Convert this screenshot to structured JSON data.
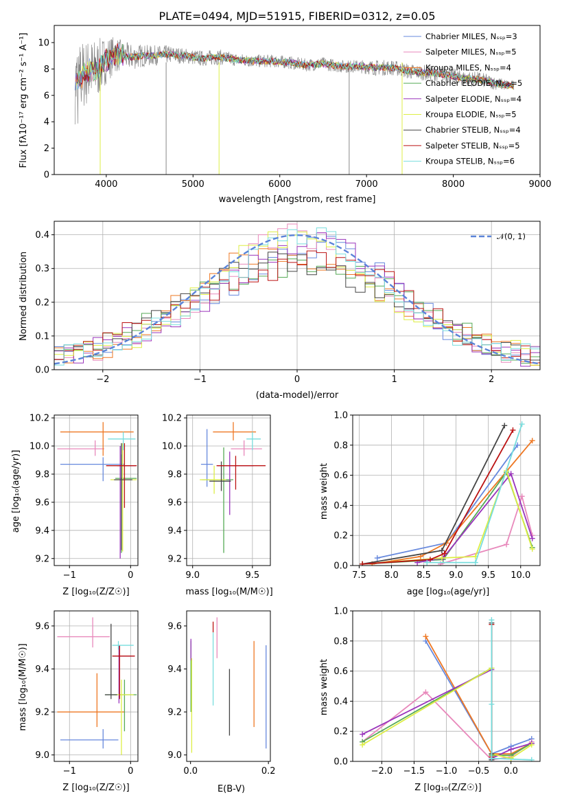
{
  "figure": {
    "colors": [
      "#6688dd",
      "#e888bb",
      "#ee7722",
      "#55aa55",
      "#9933bb",
      "#ddee44",
      "#444444",
      "#bb1111",
      "#77dddd"
    ]
  },
  "chart_data": [
    {
      "id": "spectrum",
      "type": "line",
      "title": "PLATE=0494, MJD=51915, FIBERID=0312, z=0.05",
      "xlabel": "wavelength [Angstrom, rest frame]",
      "ylabel": "Flux [fλ10⁻¹⁷ erg cm⁻² s⁻¹ A⁻¹]",
      "xlim": [
        3400,
        9000
      ],
      "ylim": [
        0,
        11.3
      ],
      "xticks": [
        4000,
        5000,
        6000,
        7000,
        8000,
        9000
      ],
      "yticks": [
        0,
        2,
        4,
        6,
        8,
        10
      ],
      "legend": "top-right",
      "observed_envelope": {
        "x": [
          3640,
          3700,
          3800,
          3900,
          4000,
          4100,
          4200,
          4300,
          4400,
          4500,
          4700,
          4900,
          5100,
          5300,
          5500,
          5700,
          5900,
          6100,
          6300,
          6500,
          6700,
          6900,
          7100,
          7300,
          7500,
          7700,
          7900,
          8100,
          8300,
          8500,
          8700
        ],
        "mid": [
          6.8,
          7.4,
          7.8,
          8.0,
          8.7,
          9.1,
          9.0,
          8.9,
          9.0,
          9.0,
          9.1,
          9.0,
          8.8,
          8.9,
          8.7,
          8.6,
          8.6,
          8.5,
          8.3,
          8.4,
          8.2,
          8.2,
          8.1,
          8.1,
          7.8,
          7.7,
          7.6,
          7.3,
          7.2,
          6.9,
          6.7
        ],
        "noise": [
          3.0,
          2.8,
          2.5,
          2.3,
          1.8,
          1.4,
          1.1,
          1.0,
          0.9,
          0.8,
          0.7,
          0.6,
          0.6,
          0.6,
          0.5,
          0.5,
          0.5,
          0.5,
          0.5,
          0.5,
          0.5,
          0.5,
          0.6,
          0.6,
          0.6,
          0.6,
          0.6,
          0.6,
          0.6,
          0.5,
          0.4
        ]
      },
      "series": [
        {
          "name": "Chabrier MILES, N$_{SSP}$=3"
        },
        {
          "name": "Salpeter MILES, N$_{SSP}$=5"
        },
        {
          "name": "Kroupa MILES, N$_{SSP}$=4"
        },
        {
          "name": "Chabrier ELODIE, N$_{SSP}$=5"
        },
        {
          "name": "Salpeter ELODIE, N$_{SSP}$=4"
        },
        {
          "name": "Kroupa ELODIE, N$_{SSP}$=5"
        },
        {
          "name": "Chabrier STELIB, N$_{SSP}$=4"
        },
        {
          "name": "Salpeter STELIB, N$_{SSP}$=5"
        },
        {
          "name": "Kroupa STELIB, N$_{SSP}$=6"
        }
      ]
    },
    {
      "id": "residuals",
      "type": "histogram",
      "xlabel": "(data-model)/error",
      "ylabel": "Normed distribution",
      "xlim": [
        -2.5,
        2.5
      ],
      "ylim": [
        0,
        0.44
      ],
      "xticks": [
        -2,
        -1,
        0,
        1,
        2
      ],
      "yticks": [
        0.0,
        0.1,
        0.2,
        0.3,
        0.4
      ],
      "grid": true,
      "legend": "top-right",
      "reference_curve": {
        "name": "$\\mathcal{N}(0,1)$",
        "mean": 0,
        "sigma": 1
      },
      "bin_width": 0.1
    },
    {
      "id": "age_vs_Z",
      "type": "errorbar",
      "xlabel": "Z [log$_{10}$(Z/Z$_\\odot$)]",
      "ylabel": "age  [log$_{10}$(age/yr)]",
      "xlim": [
        -1.25,
        0.12
      ],
      "ylim": [
        9.15,
        10.22
      ],
      "xticks": [
        -1,
        0
      ],
      "yticks": [
        9.2,
        9.4,
        9.6,
        9.8,
        10.0,
        10.2
      ],
      "grid": true,
      "points": [
        {
          "x": -0.45,
          "y": 9.87,
          "xerr": [
            0.7,
            0.35
          ],
          "yerr": [
            0.12,
            0.05
          ]
        },
        {
          "x": -0.58,
          "y": 9.98,
          "xerr": [
            0.62,
            0.15
          ],
          "yerr": [
            0.05,
            0.06
          ]
        },
        {
          "x": -0.45,
          "y": 10.1,
          "xerr": [
            0.7,
            0.5
          ],
          "yerr": [
            0.17,
            0.07
          ]
        },
        {
          "x": -0.15,
          "y": 9.77,
          "xerr": [
            0.1,
            0.25
          ],
          "yerr": [
            0.53,
            0.17
          ]
        },
        {
          "x": -0.17,
          "y": 9.86,
          "xerr": [
            0.05,
            0.25
          ],
          "yerr": [
            0.66,
            0.14
          ]
        },
        {
          "x": -0.13,
          "y": 9.76,
          "xerr": [
            0.2,
            0.23
          ],
          "yerr": [
            0.51,
            0.26
          ]
        },
        {
          "x": -0.15,
          "y": 9.76,
          "xerr": [
            0.12,
            0.18
          ],
          "yerr": [
            0.5,
            0.26
          ]
        },
        {
          "x": -0.1,
          "y": 9.86,
          "xerr": [
            0.3,
            0.2
          ],
          "yerr": [
            0.3,
            0.16
          ]
        },
        {
          "x": -0.12,
          "y": 10.05,
          "xerr": [
            0.25,
            0.2
          ],
          "yerr": [
            0.08,
            0.05
          ]
        }
      ]
    },
    {
      "id": "age_vs_mass",
      "type": "errorbar",
      "xlabel": "mass [log$_{10}$(M/M$_\\odot$)]",
      "ylabel": "",
      "xlim": [
        8.95,
        9.65
      ],
      "ylim": [
        9.15,
        10.22
      ],
      "xticks": [
        9.0,
        9.5
      ],
      "yticks": [
        9.2,
        9.4,
        9.6,
        9.8,
        10.0,
        10.2
      ],
      "grid": true,
      "points": [
        {
          "x": 9.12,
          "y": 9.87,
          "xerr": [
            0.05,
            0.05
          ],
          "yerr": [
            0.16,
            0.25
          ]
        },
        {
          "x": 9.43,
          "y": 9.98,
          "xerr": [
            0.11,
            0.15
          ],
          "yerr": [
            0.05,
            0.06
          ]
        },
        {
          "x": 9.34,
          "y": 10.1,
          "xerr": [
            0.17,
            0.19
          ],
          "yerr": [
            0.06,
            0.07
          ]
        },
        {
          "x": 9.26,
          "y": 9.76,
          "xerr": [
            0.18,
            0.08
          ],
          "yerr": [
            0.52,
            0.23
          ]
        },
        {
          "x": 9.31,
          "y": 9.86,
          "xerr": [
            0.1,
            0.2
          ],
          "yerr": [
            0.35,
            0.1
          ]
        },
        {
          "x": 9.18,
          "y": 9.76,
          "xerr": [
            0.12,
            0.1
          ],
          "yerr": [
            0.1,
            0.1
          ]
        },
        {
          "x": 9.24,
          "y": 9.75,
          "xerr": [
            0.1,
            0.08
          ],
          "yerr": [
            0.07,
            0.14
          ]
        },
        {
          "x": 9.36,
          "y": 9.86,
          "xerr": [
            0.16,
            0.25
          ],
          "yerr": [
            0.17,
            0.07
          ]
        },
        {
          "x": 9.5,
          "y": 10.05,
          "xerr": [
            0.05,
            0.07
          ],
          "yerr": [
            0.08,
            0.05
          ]
        }
      ]
    },
    {
      "id": "massweight_vs_age",
      "type": "line",
      "xlabel": "age  [log$_{10}$(age/yr)]",
      "ylabel": "mass weight",
      "xlim": [
        7.4,
        10.3
      ],
      "ylim": [
        0,
        1.0
      ],
      "xticks": [
        7.5,
        8.0,
        8.5,
        9.0,
        9.5,
        10.0
      ],
      "yticks": [
        0.0,
        0.2,
        0.4,
        0.6,
        0.8,
        1.0
      ],
      "grid": true,
      "series": [
        {
          "x": [
            7.78,
            8.85,
            9.95
          ],
          "y": [
            0.05,
            0.15,
            0.8
          ]
        },
        {
          "x": [
            8.76,
            9.78,
            10.02,
            10.18
          ],
          "y": [
            0.01,
            0.14,
            0.46,
            0.2
          ]
        },
        {
          "x": [
            7.7,
            8.45,
            8.85,
            10.18
          ],
          "y": [
            0.01,
            0.06,
            0.15,
            0.83
          ]
        },
        {
          "x": [
            7.55,
            8.8,
            9.78,
            10.18
          ],
          "y": [
            0.01,
            0.04,
            0.62,
            0.12
          ]
        },
        {
          "x": [
            8.4,
            8.8,
            9.85,
            10.18
          ],
          "y": [
            0.02,
            0.05,
            0.61,
            0.18
          ]
        },
        {
          "x": [
            7.55,
            8.78,
            9.3,
            9.78,
            10.18
          ],
          "y": [
            0.01,
            0.05,
            0.06,
            0.63,
            0.11
          ]
        },
        {
          "x": [
            7.55,
            8.78,
            9.75
          ],
          "y": [
            0.01,
            0.1,
            0.93
          ]
        },
        {
          "x": [
            7.55,
            8.6,
            8.82,
            9.88
          ],
          "y": [
            0.01,
            0.04,
            0.08,
            0.9
          ]
        },
        {
          "x": [
            8.55,
            9.3,
            10.02
          ],
          "y": [
            0.02,
            0.02,
            0.94
          ]
        }
      ]
    },
    {
      "id": "mass_vs_Z",
      "type": "errorbar",
      "xlabel": "Z [log$_{10}$(Z/Z$_\\odot$)]",
      "ylabel": "mass [log$_{10}$(M/M$_\\odot$)]",
      "xlim": [
        -1.25,
        0.12
      ],
      "ylim": [
        8.97,
        9.67
      ],
      "xticks": [
        -1,
        0
      ],
      "yticks": [
        9.0,
        9.2,
        9.4,
        9.6
      ],
      "grid": true,
      "points": [
        {
          "x": -0.45,
          "y": 9.07,
          "xerr": [
            0.7,
            0.25
          ],
          "yerr": [
            0.04,
            0.05
          ]
        },
        {
          "x": -0.62,
          "y": 9.55,
          "xerr": [
            0.58,
            0.28
          ],
          "yerr": [
            0.05,
            0.09
          ]
        },
        {
          "x": -0.55,
          "y": 9.2,
          "xerr": [
            0.65,
            0.45
          ],
          "yerr": [
            0.07,
            0.18
          ]
        },
        {
          "x": -0.1,
          "y": 9.28,
          "xerr": [
            0.32,
            0.2
          ],
          "yerr": [
            0.17,
            0.07
          ]
        },
        {
          "x": -0.19,
          "y": 9.46,
          "xerr": [
            0.1,
            0.25
          ],
          "yerr": [
            0.22,
            0.05
          ]
        },
        {
          "x": -0.15,
          "y": 9.28,
          "xerr": [
            0.12,
            0.2
          ],
          "yerr": [
            0.28,
            0.07
          ]
        },
        {
          "x": -0.32,
          "y": 9.28,
          "xerr": [
            0.1,
            0.1
          ],
          "yerr": [
            0.02,
            0.33
          ]
        },
        {
          "x": -0.18,
          "y": 9.46,
          "xerr": [
            0.12,
            0.25
          ],
          "yerr": [
            0.2,
            0.05
          ]
        },
        {
          "x": -0.2,
          "y": 9.51,
          "xerr": [
            0.1,
            0.25
          ],
          "yerr": [
            0.02,
            0.02
          ]
        }
      ]
    },
    {
      "id": "mass_vs_EBV",
      "type": "errorbar",
      "xlabel": "E(B-V)",
      "ylabel": "",
      "xlim": [
        -0.01,
        0.205
      ],
      "ylim": [
        8.97,
        9.67
      ],
      "xticks": [
        0.0,
        0.2
      ],
      "yticks": [
        9.0,
        9.2,
        9.4,
        9.6
      ],
      "points": [
        {
          "x": 0.194,
          "y": 9.27,
          "xerr": [
            0,
            0
          ],
          "yerr": [
            0.24,
            0.24
          ]
        },
        {
          "x": 0.068,
          "y": 9.56,
          "xerr": [
            0,
            0
          ],
          "yerr": [
            0.11,
            0.08
          ]
        },
        {
          "x": 0.163,
          "y": 9.33,
          "xerr": [
            0,
            0
          ],
          "yerr": [
            0.2,
            0.2
          ]
        },
        {
          "x": 0.001,
          "y": 9.47,
          "xerr": [
            0,
            0
          ],
          "yerr": [
            0.27,
            0.06
          ]
        },
        {
          "x": 0.001,
          "y": 9.49,
          "xerr": [
            0,
            0
          ],
          "yerr": [
            0.05,
            0.05
          ]
        },
        {
          "x": 0.003,
          "y": 9.24,
          "xerr": [
            0,
            0
          ],
          "yerr": [
            0.23,
            0.21
          ]
        },
        {
          "x": 0.1,
          "y": 9.24,
          "xerr": [
            0,
            0
          ],
          "yerr": [
            0.15,
            0.16
          ]
        },
        {
          "x": 0.058,
          "y": 9.59,
          "xerr": [
            0,
            0
          ],
          "yerr": [
            0.02,
            0.03
          ]
        },
        {
          "x": 0.058,
          "y": 9.4,
          "xerr": [
            0,
            0
          ],
          "yerr": [
            0.17,
            0.17
          ]
        }
      ]
    },
    {
      "id": "massweight_vs_Z",
      "type": "line",
      "xlabel": "Z [log$_{10}$(Z/Z$_\\odot$)]",
      "ylabel": "mass weight",
      "xlim": [
        -2.45,
        0.45
      ],
      "ylim": [
        0,
        1.0
      ],
      "xticks": [
        -2.0,
        -1.5,
        -1.0,
        -0.5,
        0.0
      ],
      "yticks": [
        0.0,
        0.2,
        0.4,
        0.6,
        0.8,
        1.0
      ],
      "grid": true,
      "series": [
        {
          "x": [
            -1.32,
            -0.3,
            0.0,
            0.32
          ],
          "y": [
            0.8,
            0.05,
            0.1,
            0.15
          ]
        },
        {
          "x": [
            -2.3,
            -1.32,
            -0.3,
            0.0,
            0.32
          ],
          "y": [
            0.13,
            0.46,
            0.01,
            0.03,
            0.13
          ]
        },
        {
          "x": [
            -1.32,
            -0.3,
            0.0,
            0.32
          ],
          "y": [
            0.83,
            0.05,
            0.05,
            0.12
          ]
        },
        {
          "x": [
            -2.3,
            -0.3,
            -0.3,
            0.0,
            0.32
          ],
          "y": [
            0.13,
            0.62,
            0.04,
            0.04,
            0.12
          ]
        },
        {
          "x": [
            -2.3,
            -0.3,
            -0.3,
            0.0,
            0.32
          ],
          "y": [
            0.18,
            0.61,
            0.02,
            0.08,
            0.12
          ]
        },
        {
          "x": [
            -2.3,
            -0.3,
            -0.3,
            0.0,
            0.32
          ],
          "y": [
            0.11,
            0.62,
            0.05,
            0.02,
            0.11
          ]
        },
        {
          "x": [
            -0.3,
            -0.3,
            -0.3
          ],
          "y": [
            0.92,
            0.05,
            0.01
          ]
        },
        {
          "x": [
            -0.3,
            -0.3
          ],
          "y": [
            0.91,
            0.03
          ]
        },
        {
          "x": [
            -0.3,
            -0.3,
            -0.3,
            0.32
          ],
          "y": [
            0.94,
            0.38,
            0.02,
            0.01
          ]
        }
      ]
    }
  ]
}
